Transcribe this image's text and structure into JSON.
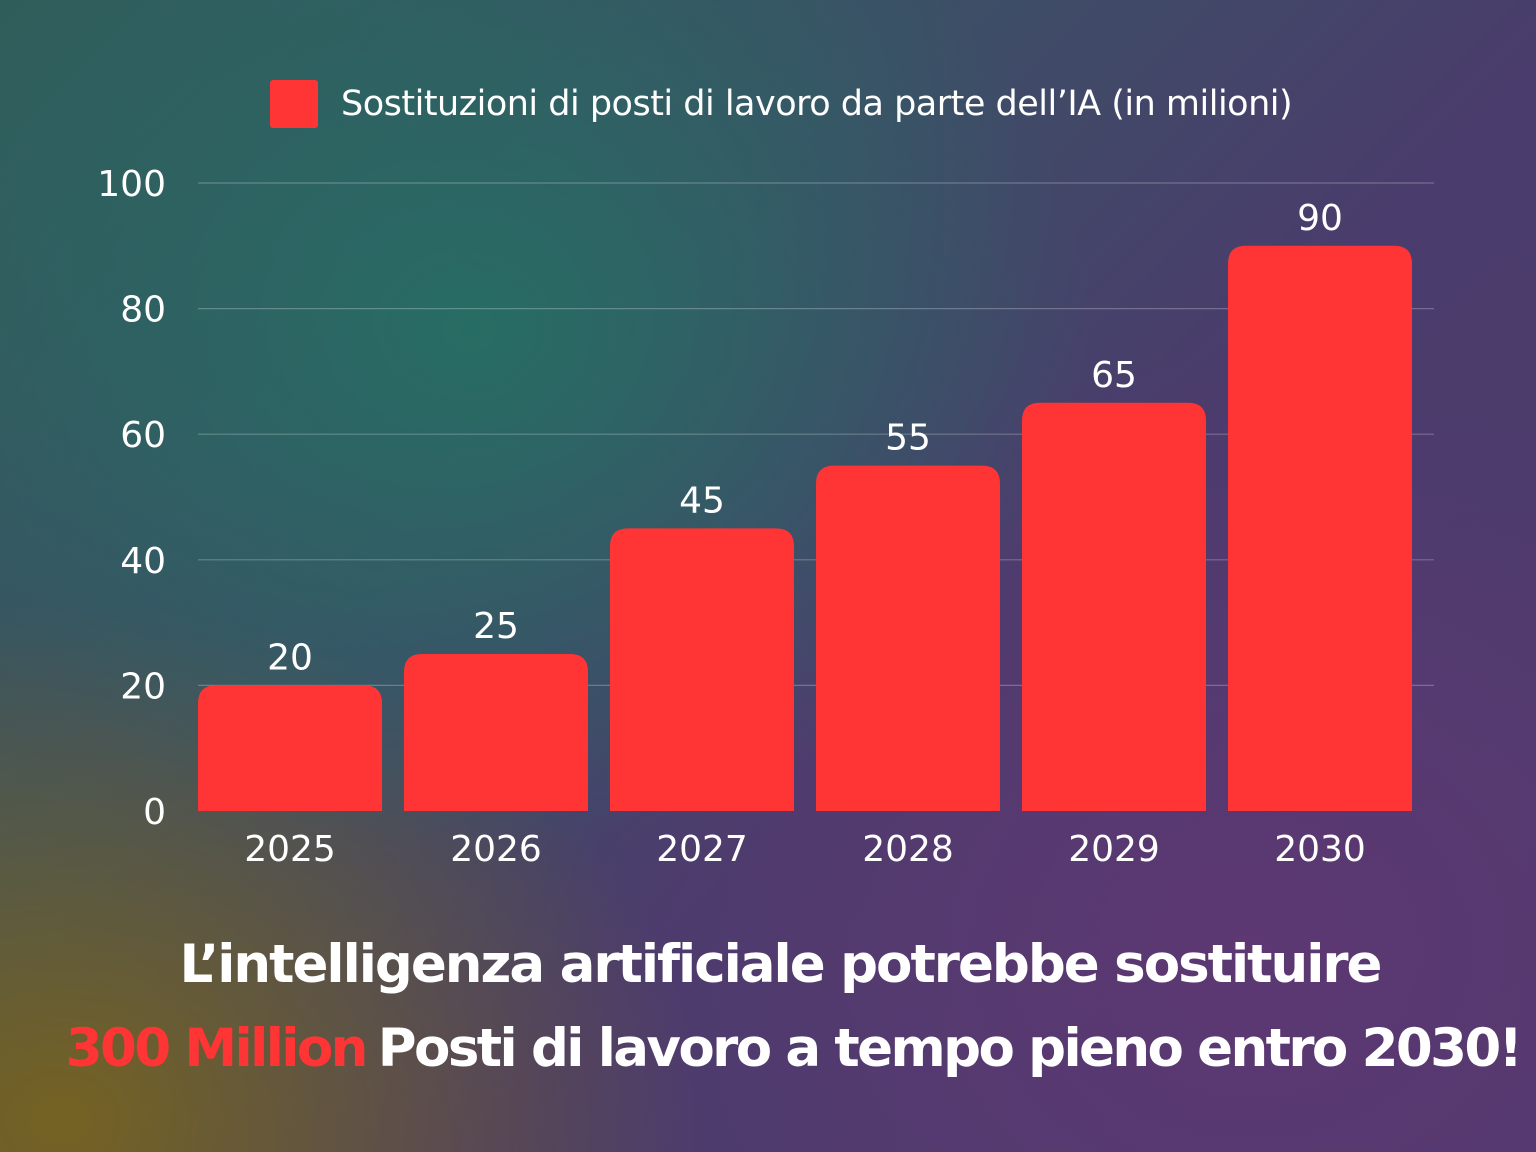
{
  "colors": {
    "bar": "#ff3535",
    "highlight": "#ff3535",
    "text": "#ffffff",
    "gridline": "rgba(255,255,255,0.25)"
  },
  "chart_data": {
    "type": "bar",
    "categories": [
      "2025",
      "2026",
      "2027",
      "2028",
      "2029",
      "2030"
    ],
    "series": [
      {
        "name": "Sostituzioni di posti di lavoro da parte dell’IA (in milioni)",
        "values": [
          20,
          25,
          45,
          55,
          65,
          90
        ]
      }
    ],
    "ylim": [
      0,
      100
    ],
    "yticks": [
      "0",
      "20",
      "40",
      "60",
      "80",
      "100"
    ],
    "data_labels": [
      "20",
      "25",
      "45",
      "55",
      "65",
      "90"
    ],
    "grid": true,
    "legend": "top"
  },
  "headline": {
    "line1": "L’intelligenza artificiale potrebbe sostituire",
    "highlight": "300 Million",
    "line2_rest": "Posti di lavoro a tempo pieno entro 2030!"
  }
}
